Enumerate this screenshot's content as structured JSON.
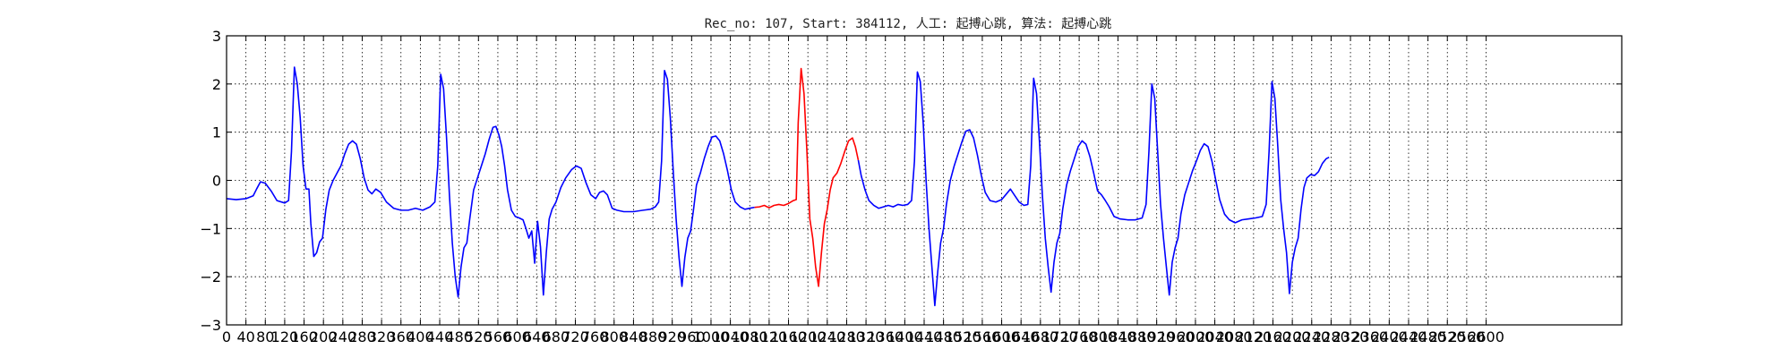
{
  "chart_data": {
    "type": "line",
    "title": "Rec_no: 107, Start: 384112, 人工: 起搏心跳, 算法: 起搏心跳",
    "xlabel": "",
    "ylabel": "",
    "xlim": [
      0,
      2880
    ],
    "ylim": [
      -3,
      3
    ],
    "grid": true,
    "x_ticks": [
      0,
      40,
      80,
      120,
      160,
      200,
      240,
      280,
      320,
      360,
      400,
      440,
      480,
      520,
      560,
      600,
      640,
      680,
      720,
      760,
      800,
      840,
      880,
      920,
      960,
      1000,
      1040,
      1080,
      1120,
      1160,
      1200,
      1240,
      1280,
      1320,
      1360,
      1400,
      1440,
      1480,
      1520,
      1560,
      1600,
      1640,
      1680,
      1720,
      1760,
      1800,
      1840,
      1880,
      1920,
      1960,
      2000,
      2040,
      2080,
      2120,
      2160,
      2200,
      2240,
      2280,
      2320,
      2360,
      2400,
      2440,
      2480,
      2520,
      2560,
      2600
    ],
    "y_ticks": [
      -3,
      -2,
      -1,
      0,
      1,
      2,
      3
    ],
    "series": [
      {
        "color": "#0000ff",
        "points": [
          [
            0,
            -0.38
          ],
          [
            20,
            -0.4
          ],
          [
            40,
            -0.38
          ],
          [
            55,
            -0.32
          ],
          [
            62,
            -0.18
          ],
          [
            70,
            -0.03
          ],
          [
            80,
            -0.06
          ],
          [
            92,
            -0.22
          ],
          [
            104,
            -0.42
          ],
          [
            120,
            -0.47
          ],
          [
            128,
            -0.42
          ],
          [
            134,
            0.6
          ],
          [
            140,
            2.35
          ],
          [
            146,
            2.0
          ],
          [
            152,
            1.3
          ],
          [
            158,
            0.3
          ],
          [
            164,
            -0.18
          ],
          [
            170,
            -0.18
          ],
          [
            174,
            -0.9
          ],
          [
            180,
            -1.58
          ],
          [
            186,
            -1.5
          ],
          [
            192,
            -1.28
          ],
          [
            198,
            -1.2
          ],
          [
            205,
            -0.6
          ],
          [
            212,
            -0.2
          ],
          [
            220,
            0.0
          ],
          [
            228,
            0.15
          ],
          [
            236,
            0.3
          ],
          [
            244,
            0.55
          ],
          [
            252,
            0.75
          ],
          [
            260,
            0.82
          ],
          [
            268,
            0.75
          ],
          [
            276,
            0.45
          ],
          [
            284,
            0.05
          ],
          [
            292,
            -0.2
          ],
          [
            300,
            -0.28
          ],
          [
            308,
            -0.18
          ],
          [
            318,
            -0.25
          ],
          [
            330,
            -0.45
          ],
          [
            345,
            -0.58
          ],
          [
            360,
            -0.62
          ],
          [
            375,
            -0.62
          ],
          [
            390,
            -0.58
          ],
          [
            405,
            -0.62
          ],
          [
            420,
            -0.55
          ],
          [
            430,
            -0.45
          ],
          [
            436,
            0.3
          ],
          [
            442,
            2.2
          ],
          [
            448,
            1.9
          ],
          [
            454,
            0.9
          ],
          [
            460,
            -0.3
          ],
          [
            466,
            -1.3
          ],
          [
            472,
            -2.0
          ],
          [
            478,
            -2.42
          ],
          [
            484,
            -1.8
          ],
          [
            490,
            -1.4
          ],
          [
            496,
            -1.3
          ],
          [
            502,
            -0.8
          ],
          [
            510,
            -0.2
          ],
          [
            518,
            0.05
          ],
          [
            526,
            0.3
          ],
          [
            534,
            0.55
          ],
          [
            542,
            0.85
          ],
          [
            550,
            1.1
          ],
          [
            556,
            1.12
          ],
          [
            562,
            0.95
          ],
          [
            568,
            0.7
          ],
          [
            574,
            0.3
          ],
          [
            580,
            -0.2
          ],
          [
            588,
            -0.62
          ],
          [
            596,
            -0.75
          ],
          [
            604,
            -0.78
          ],
          [
            612,
            -0.82
          ],
          [
            618,
            -1.0
          ],
          [
            624,
            -1.2
          ],
          [
            630,
            -1.05
          ],
          [
            636,
            -1.72
          ],
          [
            642,
            -0.85
          ],
          [
            648,
            -1.38
          ],
          [
            654,
            -2.38
          ],
          [
            660,
            -1.5
          ],
          [
            666,
            -0.8
          ],
          [
            672,
            -0.6
          ],
          [
            680,
            -0.45
          ],
          [
            690,
            -0.15
          ],
          [
            700,
            0.05
          ],
          [
            712,
            0.22
          ],
          [
            722,
            0.3
          ],
          [
            732,
            0.25
          ],
          [
            742,
            -0.05
          ],
          [
            752,
            -0.3
          ],
          [
            762,
            -0.38
          ],
          [
            770,
            -0.25
          ],
          [
            778,
            -0.22
          ],
          [
            786,
            -0.3
          ],
          [
            796,
            -0.58
          ],
          [
            806,
            -0.62
          ],
          [
            820,
            -0.65
          ],
          [
            840,
            -0.65
          ],
          [
            860,
            -0.62
          ],
          [
            875,
            -0.6
          ],
          [
            885,
            -0.55
          ],
          [
            892,
            -0.45
          ],
          [
            898,
            0.4
          ],
          [
            904,
            2.28
          ],
          [
            910,
            2.1
          ],
          [
            916,
            1.3
          ],
          [
            922,
            0.2
          ],
          [
            928,
            -0.8
          ],
          [
            934,
            -1.6
          ],
          [
            940,
            -2.2
          ],
          [
            946,
            -1.6
          ],
          [
            952,
            -1.2
          ],
          [
            958,
            -1.05
          ],
          [
            964,
            -0.6
          ],
          [
            970,
            -0.1
          ],
          [
            978,
            0.15
          ],
          [
            986,
            0.45
          ],
          [
            994,
            0.7
          ],
          [
            1002,
            0.9
          ],
          [
            1010,
            0.92
          ],
          [
            1018,
            0.82
          ],
          [
            1026,
            0.55
          ],
          [
            1034,
            0.2
          ],
          [
            1042,
            -0.2
          ],
          [
            1050,
            -0.45
          ],
          [
            1060,
            -0.55
          ],
          [
            1070,
            -0.6
          ],
          [
            1080,
            -0.58
          ],
          [
            1090,
            -0.56
          ]
        ]
      },
      {
        "color": "#ff0000",
        "points": [
          [
            1090,
            -0.56
          ],
          [
            1100,
            -0.55
          ],
          [
            1110,
            -0.52
          ],
          [
            1120,
            -0.57
          ],
          [
            1130,
            -0.52
          ],
          [
            1140,
            -0.5
          ],
          [
            1150,
            -0.52
          ],
          [
            1160,
            -0.48
          ],
          [
            1170,
            -0.42
          ],
          [
            1176,
            -0.4
          ],
          [
            1180,
            1.2
          ],
          [
            1186,
            2.32
          ],
          [
            1192,
            1.8
          ],
          [
            1198,
            0.6
          ],
          [
            1204,
            -0.8
          ],
          [
            1210,
            -1.2
          ],
          [
            1216,
            -1.8
          ],
          [
            1222,
            -2.2
          ],
          [
            1228,
            -1.5
          ],
          [
            1234,
            -0.9
          ],
          [
            1240,
            -0.6
          ],
          [
            1246,
            -0.2
          ],
          [
            1252,
            0.05
          ],
          [
            1260,
            0.15
          ],
          [
            1268,
            0.35
          ],
          [
            1276,
            0.6
          ],
          [
            1284,
            0.82
          ],
          [
            1292,
            0.88
          ],
          [
            1298,
            0.7
          ],
          [
            1304,
            0.42
          ]
        ]
      },
      {
        "color": "#0000ff",
        "points": [
          [
            1304,
            0.42
          ],
          [
            1310,
            0.1
          ],
          [
            1318,
            -0.2
          ],
          [
            1326,
            -0.42
          ],
          [
            1336,
            -0.52
          ],
          [
            1346,
            -0.58
          ],
          [
            1356,
            -0.55
          ],
          [
            1366,
            -0.52
          ],
          [
            1376,
            -0.55
          ],
          [
            1386,
            -0.5
          ],
          [
            1396,
            -0.52
          ],
          [
            1406,
            -0.5
          ],
          [
            1414,
            -0.42
          ],
          [
            1420,
            0.4
          ],
          [
            1426,
            2.25
          ],
          [
            1432,
            2.05
          ],
          [
            1438,
            1.2
          ],
          [
            1444,
            0.0
          ],
          [
            1450,
            -1.0
          ],
          [
            1456,
            -1.8
          ],
          [
            1462,
            -2.6
          ],
          [
            1468,
            -1.9
          ],
          [
            1474,
            -1.3
          ],
          [
            1480,
            -1.0
          ],
          [
            1486,
            -0.5
          ],
          [
            1494,
            0.0
          ],
          [
            1502,
            0.3
          ],
          [
            1510,
            0.55
          ],
          [
            1518,
            0.8
          ],
          [
            1526,
            1.02
          ],
          [
            1534,
            1.05
          ],
          [
            1542,
            0.88
          ],
          [
            1550,
            0.52
          ],
          [
            1558,
            0.1
          ],
          [
            1566,
            -0.25
          ],
          [
            1576,
            -0.42
          ],
          [
            1588,
            -0.45
          ],
          [
            1600,
            -0.4
          ],
          [
            1610,
            -0.28
          ],
          [
            1618,
            -0.18
          ],
          [
            1626,
            -0.3
          ],
          [
            1636,
            -0.45
          ],
          [
            1646,
            -0.52
          ],
          [
            1654,
            -0.5
          ],
          [
            1660,
            0.3
          ],
          [
            1666,
            2.12
          ],
          [
            1672,
            1.8
          ],
          [
            1678,
            0.8
          ],
          [
            1684,
            -0.3
          ],
          [
            1690,
            -1.2
          ],
          [
            1696,
            -1.8
          ],
          [
            1702,
            -2.32
          ],
          [
            1708,
            -1.7
          ],
          [
            1714,
            -1.3
          ],
          [
            1720,
            -1.1
          ],
          [
            1726,
            -0.6
          ],
          [
            1734,
            -0.1
          ],
          [
            1742,
            0.2
          ],
          [
            1750,
            0.45
          ],
          [
            1758,
            0.7
          ],
          [
            1766,
            0.82
          ],
          [
            1774,
            0.75
          ],
          [
            1782,
            0.5
          ],
          [
            1790,
            0.15
          ],
          [
            1798,
            -0.22
          ],
          [
            1806,
            -0.3
          ],
          [
            1814,
            -0.42
          ],
          [
            1822,
            -0.55
          ],
          [
            1832,
            -0.75
          ],
          [
            1844,
            -0.8
          ],
          [
            1860,
            -0.82
          ],
          [
            1876,
            -0.82
          ],
          [
            1890,
            -0.78
          ],
          [
            1898,
            -0.5
          ],
          [
            1904,
            0.6
          ],
          [
            1910,
            2.0
          ],
          [
            1916,
            1.7
          ],
          [
            1922,
            0.6
          ],
          [
            1928,
            -0.5
          ],
          [
            1934,
            -1.2
          ],
          [
            1940,
            -1.8
          ],
          [
            1946,
            -2.38
          ],
          [
            1952,
            -1.7
          ],
          [
            1958,
            -1.4
          ],
          [
            1964,
            -1.2
          ],
          [
            1970,
            -0.7
          ],
          [
            1978,
            -0.3
          ],
          [
            1986,
            -0.05
          ],
          [
            1994,
            0.2
          ],
          [
            2002,
            0.4
          ],
          [
            2010,
            0.62
          ],
          [
            2018,
            0.76
          ],
          [
            2026,
            0.7
          ],
          [
            2034,
            0.4
          ],
          [
            2042,
            0.0
          ],
          [
            2050,
            -0.4
          ],
          [
            2060,
            -0.7
          ],
          [
            2070,
            -0.82
          ],
          [
            2082,
            -0.88
          ],
          [
            2096,
            -0.82
          ],
          [
            2110,
            -0.8
          ],
          [
            2124,
            -0.78
          ],
          [
            2138,
            -0.75
          ],
          [
            2146,
            -0.5
          ],
          [
            2152,
            0.6
          ],
          [
            2158,
            2.05
          ],
          [
            2164,
            1.7
          ],
          [
            2170,
            0.7
          ],
          [
            2176,
            -0.4
          ],
          [
            2182,
            -1.0
          ],
          [
            2188,
            -1.5
          ],
          [
            2194,
            -2.35
          ],
          [
            2200,
            -1.7
          ],
          [
            2206,
            -1.4
          ],
          [
            2212,
            -1.2
          ],
          [
            2218,
            -0.6
          ],
          [
            2224,
            -0.15
          ],
          [
            2230,
            0.05
          ],
          [
            2238,
            0.12
          ],
          [
            2246,
            0.1
          ],
          [
            2254,
            0.18
          ],
          [
            2262,
            0.35
          ],
          [
            2270,
            0.45
          ],
          [
            2276,
            0.48
          ]
        ]
      }
    ]
  }
}
